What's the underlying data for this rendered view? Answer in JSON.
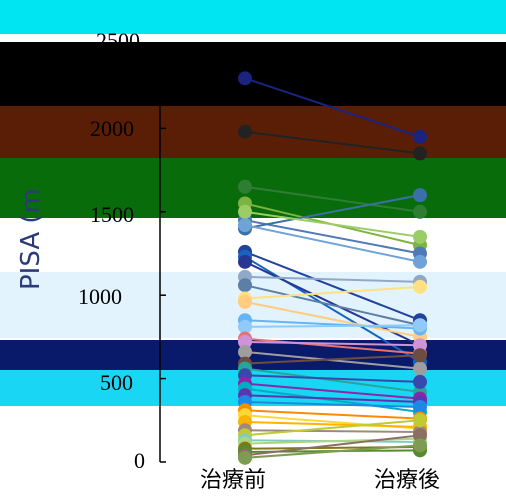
{
  "chart_data": {
    "type": "line",
    "ylabel": "PISA (m",
    "yticks": [
      "0",
      "500",
      "1000",
      "1500",
      "2000",
      "2500"
    ],
    "categories": [
      "治療前",
      "治療後"
    ],
    "ylim": [
      0,
      2500
    ],
    "series": [
      {
        "values": [
          2300,
          1950
        ],
        "color": "#1a237e"
      },
      {
        "values": [
          1980,
          1850
        ],
        "color": "#222222"
      },
      {
        "values": [
          1650,
          1500
        ],
        "color": "#2e7d32"
      },
      {
        "values": [
          1550,
          1300
        ],
        "color": "#7cb342"
      },
      {
        "values": [
          1450,
          1250
        ],
        "color": "#4f79b8"
      },
      {
        "values": [
          1400,
          1600
        ],
        "color": "#3a6fa8"
      },
      {
        "values": [
          1500,
          1350
        ],
        "color": "#9ccc65"
      },
      {
        "values": [
          1420,
          1200
        ],
        "color": "#6fa2d6"
      },
      {
        "values": [
          1260,
          850
        ],
        "color": "#21439c"
      },
      {
        "values": [
          1230,
          600
        ],
        "color": "#1565c0"
      },
      {
        "values": [
          1200,
          700
        ],
        "color": "#283593"
      },
      {
        "values": [
          1110,
          1080
        ],
        "color": "#8fa9c6"
      },
      {
        "values": [
          1060,
          820
        ],
        "color": "#5c7fa6"
      },
      {
        "values": [
          980,
          1050
        ],
        "color": "#ffe082"
      },
      {
        "values": [
          960,
          750
        ],
        "color": "#ffcc80"
      },
      {
        "values": [
          850,
          800
        ],
        "color": "#64b5f6"
      },
      {
        "values": [
          810,
          820
        ],
        "color": "#90caf9"
      },
      {
        "values": [
          740,
          650
        ],
        "color": "#e57373"
      },
      {
        "values": [
          720,
          700
        ],
        "color": "#ce93d8"
      },
      {
        "values": [
          660,
          560
        ],
        "color": "#9e9e9e"
      },
      {
        "values": [
          590,
          640
        ],
        "color": "#6d4c41"
      },
      {
        "values": [
          560,
          420
        ],
        "color": "#26a69a"
      },
      {
        "values": [
          520,
          480
        ],
        "color": "#3949ab"
      },
      {
        "values": [
          470,
          380
        ],
        "color": "#8e24aa"
      },
      {
        "values": [
          440,
          300
        ],
        "color": "#00acc1"
      },
      {
        "values": [
          400,
          360
        ],
        "color": "#5e35b1"
      },
      {
        "values": [
          360,
          330
        ],
        "color": "#1e88e5"
      },
      {
        "values": [
          310,
          260
        ],
        "color": "#fb8c00"
      },
      {
        "values": [
          280,
          200
        ],
        "color": "#fdd835"
      },
      {
        "values": [
          240,
          210
        ],
        "color": "#ffb300"
      },
      {
        "values": [
          190,
          180
        ],
        "color": "#a1887f"
      },
      {
        "values": [
          160,
          250
        ],
        "color": "#c0ca33"
      },
      {
        "values": [
          130,
          120
        ],
        "color": "#80cbc4"
      },
      {
        "values": [
          110,
          140
        ],
        "color": "#aed581"
      },
      {
        "values": [
          80,
          90
        ],
        "color": "#827717"
      },
      {
        "values": [
          60,
          70
        ],
        "color": "#558b2f"
      },
      {
        "values": [
          40,
          160
        ],
        "color": "#8d6e63"
      },
      {
        "values": [
          25,
          100
        ],
        "color": "#7e9b52"
      }
    ]
  }
}
